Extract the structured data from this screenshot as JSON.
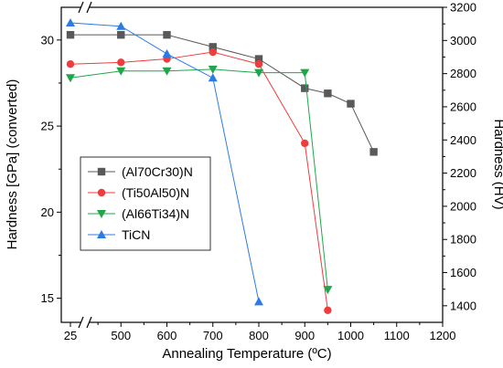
{
  "chart_data": {
    "type": "line",
    "xlabel": "Annealing Temperature (ºC)",
    "ylabel_left": "Hardness [GPa] (converted)",
    "ylabel_right": "Hardness (HV)",
    "xlim_broken": [
      25,
      400,
      1200
    ],
    "ylim_left": [
      13.6,
      31.9
    ],
    "ylim_right": [
      1300,
      3200
    ],
    "x_ticks": [
      25,
      500,
      600,
      700,
      800,
      900,
      1000,
      1100,
      1200
    ],
    "y_left_ticks": [
      15,
      20,
      25,
      30
    ],
    "y_right_ticks": [
      1400,
      1600,
      1800,
      2000,
      2200,
      2400,
      2600,
      2800,
      3000,
      3200
    ],
    "legend_position": "center-left",
    "series": [
      {
        "name": "(Al70Cr30)N",
        "color": "#595959",
        "marker": "square",
        "x": [
          25,
          500,
          600,
          700,
          800,
          900,
          950,
          1000,
          1050
        ],
        "y": [
          30.3,
          30.3,
          30.3,
          29.6,
          28.9,
          27.2,
          26.9,
          26.3,
          23.5
        ]
      },
      {
        "name": "(Ti50Al50)N",
        "color": "#f03c3c",
        "marker": "circle",
        "x": [
          25,
          500,
          600,
          700,
          800,
          900,
          950
        ],
        "y": [
          28.6,
          28.7,
          28.9,
          29.3,
          28.6,
          24.0,
          14.3
        ]
      },
      {
        "name": "(Al66Ti34)N",
        "color": "#1fa64a",
        "marker": "triangle-down",
        "x": [
          25,
          500,
          600,
          700,
          800,
          900,
          950
        ],
        "y": [
          27.8,
          28.2,
          28.2,
          28.3,
          28.1,
          28.1,
          15.5
        ]
      },
      {
        "name": "TiCN",
        "color": "#2b7be4",
        "marker": "triangle-up",
        "x": [
          25,
          500,
          600,
          700,
          800
        ],
        "y": [
          31.0,
          30.8,
          29.2,
          27.8,
          14.8
        ]
      }
    ]
  }
}
